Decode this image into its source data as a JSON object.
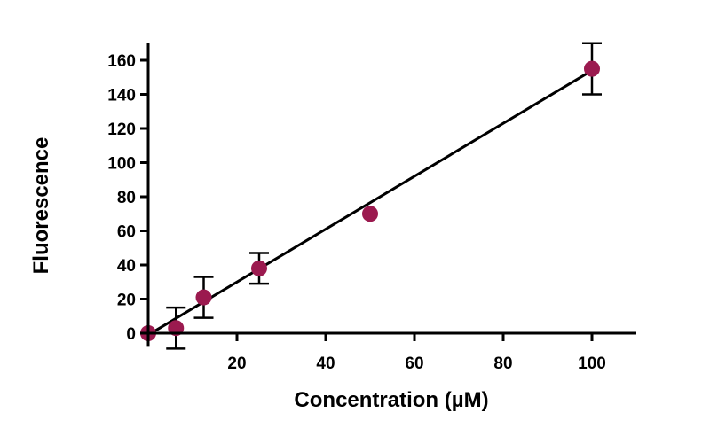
{
  "chart_data": {
    "type": "scatter",
    "xlabel": "Concentration (µM)",
    "ylabel": "Fluorescence",
    "xlim": [
      0,
      110
    ],
    "ylim": [
      -8,
      170
    ],
    "x_ticks": [
      20,
      40,
      60,
      80,
      100
    ],
    "y_ticks": [
      0,
      20,
      40,
      60,
      80,
      100,
      120,
      140,
      160
    ],
    "grid": false,
    "series": [
      {
        "points": [
          {
            "x": 0,
            "y": 0,
            "err": 0
          },
          {
            "x": 6.25,
            "y": 3,
            "err": 12
          },
          {
            "x": 12.5,
            "y": 21,
            "err": 12
          },
          {
            "x": 25,
            "y": 38,
            "err": 9
          },
          {
            "x": 50,
            "y": 70,
            "err": 0
          },
          {
            "x": 100,
            "y": 155,
            "err": 15
          }
        ]
      }
    ],
    "fit_line": {
      "type": "linear",
      "x0": 0,
      "y0": -1,
      "x1": 100,
      "y1": 154
    },
    "colors": {
      "marker": "#9b1a4f",
      "line": "#000000",
      "axis": "#000000"
    }
  }
}
